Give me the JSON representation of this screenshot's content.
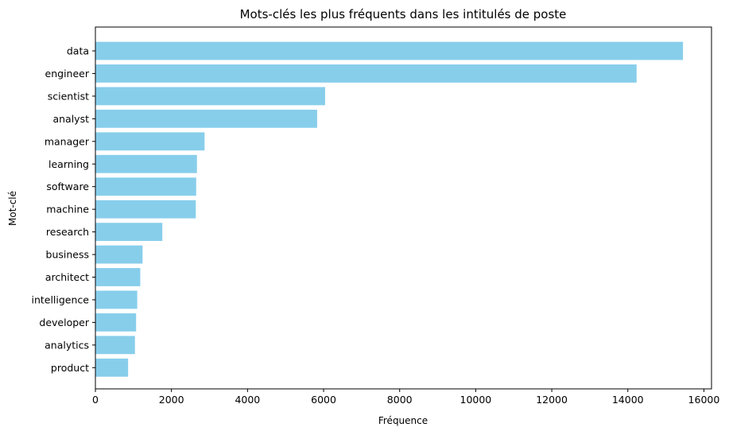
{
  "chart_data": {
    "type": "bar",
    "orientation": "horizontal",
    "title": "Mots-clés les plus fréquents dans les intitulés de poste",
    "xlabel": "Fréquence",
    "ylabel": "Mot-clé",
    "xlim": [
      0,
      16200
    ],
    "xticks": [
      0,
      2000,
      4000,
      6000,
      8000,
      10000,
      12000,
      14000,
      16000
    ],
    "grid": false,
    "bar_color": "#87ceeb",
    "categories": [
      "data",
      "engineer",
      "scientist",
      "analyst",
      "manager",
      "learning",
      "software",
      "machine",
      "research",
      "business",
      "architect",
      "intelligence",
      "developer",
      "analytics",
      "product"
    ],
    "values": [
      15450,
      14230,
      6040,
      5830,
      2870,
      2670,
      2650,
      2640,
      1760,
      1240,
      1180,
      1100,
      1070,
      1040,
      860
    ]
  }
}
